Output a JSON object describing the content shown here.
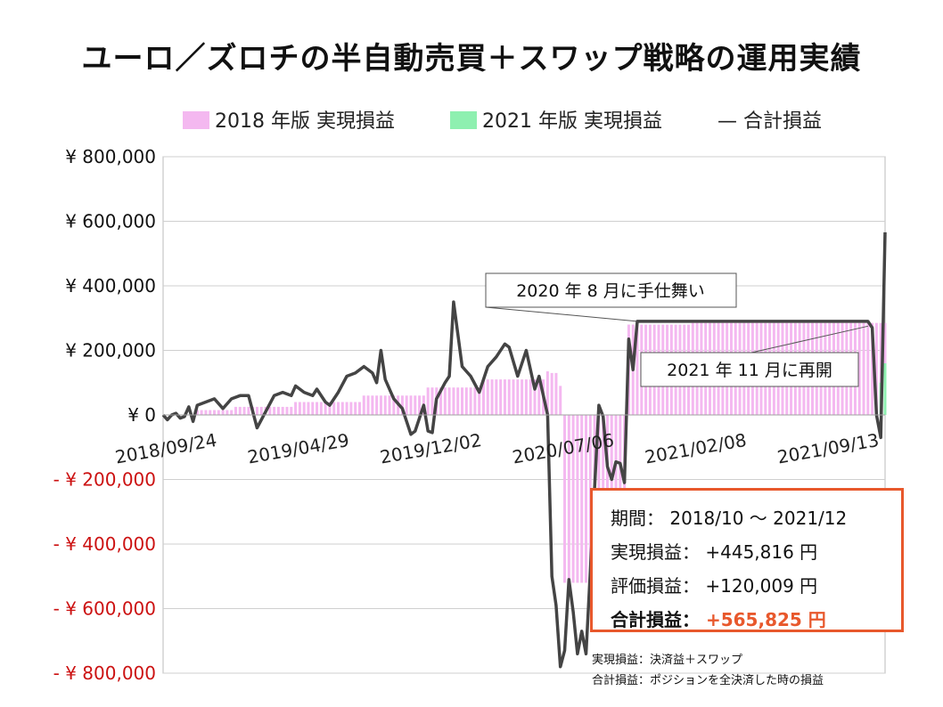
{
  "chart_data": {
    "type": "bar+line",
    "title": "ユーロ／ズロチの半自動売買＋スワップ戦略の運用実績",
    "legend": {
      "placement": "top",
      "items": [
        {
          "label": "2018 年版 実現損益",
          "color": "#f4b8f0",
          "kind": "bar"
        },
        {
          "label": "2021 年版 実現損益",
          "color": "#8ef0b0",
          "kind": "bar"
        },
        {
          "label": "合計損益",
          "color": "#444444",
          "kind": "line",
          "prefix": "—"
        }
      ]
    },
    "y_axis": {
      "range": [
        -800000,
        800000
      ],
      "step": 200000,
      "tick_labels": [
        "¥ 800,000",
        "¥ 600,000",
        "¥ 400,000",
        "¥ 200,000",
        "¥ 0",
        "- ¥ 200,000",
        "- ¥ 400,000",
        "- ¥ 600,000",
        "- ¥ 800,000"
      ],
      "negative_color": "#cc1111"
    },
    "x_axis": {
      "type": "date",
      "range": [
        "2018-09-24",
        "2021-12-20"
      ],
      "tick_labels": [
        "2018/09/24",
        "2019/04/29",
        "2019/12/02",
        "2020/07/06",
        "2021/02/08",
        "2021/09/13"
      ],
      "tick_dates": [
        "2018-09-24",
        "2019-04-29",
        "2019-12-02",
        "2020-07-06",
        "2021-02-08",
        "2021-09-13"
      ]
    },
    "grid": true,
    "series": [
      {
        "name": "2018 年版 実現損益",
        "type": "bar",
        "color": "#f4b8f0",
        "points": [
          [
            "2018-09-24",
            0
          ],
          [
            "2018-11-15",
            15000
          ],
          [
            "2019-01-15",
            25000
          ],
          [
            "2019-04-29",
            40000
          ],
          [
            "2019-08-15",
            60000
          ],
          [
            "2019-12-02",
            85000
          ],
          [
            "2020-03-01",
            110000
          ],
          [
            "2020-06-15",
            135000
          ],
          [
            "2020-06-22",
            130000
          ],
          [
            "2020-07-02",
            90000
          ],
          [
            "2020-07-10",
            -520000
          ],
          [
            "2020-10-15",
            -505000
          ],
          [
            "2020-10-26",
            280000
          ],
          [
            "2021-02-08",
            285000
          ],
          [
            "2021-09-13",
            285000
          ],
          [
            "2021-12-20",
            285000
          ]
        ]
      },
      {
        "name": "2021 年版 実現損益",
        "type": "bar",
        "color": "#8ef0b0",
        "points": [
          [
            "2021-12-13",
            100000
          ],
          [
            "2021-12-20",
            160000
          ]
        ]
      },
      {
        "name": "合計損益",
        "type": "line",
        "color": "#444444",
        "points": [
          [
            "2018-09-24",
            0
          ],
          [
            "2018-10-01",
            -15000
          ],
          [
            "2018-10-08",
            0
          ],
          [
            "2018-10-15",
            5000
          ],
          [
            "2018-10-22",
            -10000
          ],
          [
            "2018-10-29",
            -5000
          ],
          [
            "2018-11-05",
            25000
          ],
          [
            "2018-11-12",
            -20000
          ],
          [
            "2018-11-19",
            30000
          ],
          [
            "2018-12-03",
            40000
          ],
          [
            "2018-12-17",
            50000
          ],
          [
            "2018-12-31",
            20000
          ],
          [
            "2019-01-14",
            50000
          ],
          [
            "2019-01-28",
            60000
          ],
          [
            "2019-02-11",
            60000
          ],
          [
            "2019-02-25",
            -40000
          ],
          [
            "2019-03-11",
            10000
          ],
          [
            "2019-03-25",
            60000
          ],
          [
            "2019-04-08",
            70000
          ],
          [
            "2019-04-22",
            60000
          ],
          [
            "2019-04-29",
            90000
          ],
          [
            "2019-05-13",
            70000
          ],
          [
            "2019-05-27",
            60000
          ],
          [
            "2019-06-03",
            80000
          ],
          [
            "2019-06-17",
            40000
          ],
          [
            "2019-06-24",
            30000
          ],
          [
            "2019-07-08",
            70000
          ],
          [
            "2019-07-22",
            120000
          ],
          [
            "2019-08-05",
            130000
          ],
          [
            "2019-08-19",
            150000
          ],
          [
            "2019-09-02",
            130000
          ],
          [
            "2019-09-09",
            100000
          ],
          [
            "2019-09-16",
            200000
          ],
          [
            "2019-09-23",
            110000
          ],
          [
            "2019-10-07",
            50000
          ],
          [
            "2019-10-21",
            20000
          ],
          [
            "2019-11-04",
            -60000
          ],
          [
            "2019-11-11",
            -50000
          ],
          [
            "2019-11-25",
            30000
          ],
          [
            "2019-12-02",
            -50000
          ],
          [
            "2019-12-09",
            -55000
          ],
          [
            "2019-12-16",
            50000
          ],
          [
            "2019-12-30",
            100000
          ],
          [
            "2020-01-06",
            120000
          ],
          [
            "2020-01-13",
            350000
          ],
          [
            "2020-01-27",
            150000
          ],
          [
            "2020-02-10",
            120000
          ],
          [
            "2020-02-24",
            70000
          ],
          [
            "2020-03-09",
            150000
          ],
          [
            "2020-03-23",
            180000
          ],
          [
            "2020-04-06",
            220000
          ],
          [
            "2020-04-13",
            210000
          ],
          [
            "2020-04-27",
            120000
          ],
          [
            "2020-05-11",
            200000
          ],
          [
            "2020-05-25",
            80000
          ],
          [
            "2020-06-01",
            120000
          ],
          [
            "2020-06-15",
            0
          ],
          [
            "2020-06-22",
            -500000
          ],
          [
            "2020-06-29",
            -590000
          ],
          [
            "2020-07-06",
            -780000
          ],
          [
            "2020-07-13",
            -730000
          ],
          [
            "2020-07-20",
            -510000
          ],
          [
            "2020-07-27",
            -610000
          ],
          [
            "2020-08-03",
            -740000
          ],
          [
            "2020-08-10",
            -670000
          ],
          [
            "2020-08-17",
            -740000
          ],
          [
            "2020-09-07",
            30000
          ],
          [
            "2020-09-14",
            -5000
          ],
          [
            "2020-09-21",
            -160000
          ],
          [
            "2020-09-28",
            -200000
          ],
          [
            "2020-10-05",
            -145000
          ],
          [
            "2020-10-12",
            -150000
          ],
          [
            "2020-10-19",
            -210000
          ],
          [
            "2020-10-26",
            235000
          ],
          [
            "2020-11-02",
            140000
          ],
          [
            "2020-11-09",
            290000
          ],
          [
            "2021-11-22",
            290000
          ],
          [
            "2021-11-29",
            270000
          ],
          [
            "2021-12-06",
            0
          ],
          [
            "2021-12-13",
            -70000
          ],
          [
            "2021-12-20",
            565825
          ]
        ]
      }
    ],
    "annotations": [
      {
        "text": "2020 年 8 月に手仕舞い",
        "date": "2020-11-09",
        "value": 290000
      },
      {
        "text": "2021 年 11 月に再開",
        "date": "2021-11-22",
        "value": 275000
      }
    ]
  },
  "summary": {
    "rows": [
      {
        "label": "期間：",
        "value": "2018/10 ～ 2021/12"
      },
      {
        "label": "実現損益：",
        "value": "+445,816 円"
      },
      {
        "label": "評価損益：",
        "value": "+120,009 円"
      },
      {
        "label": "合計損益：",
        "value": "+565,825 円"
      }
    ]
  },
  "notes": [
    "実現損益：決済益＋スワップ",
    "合計損益：ポジションを全決済した時の損益"
  ]
}
